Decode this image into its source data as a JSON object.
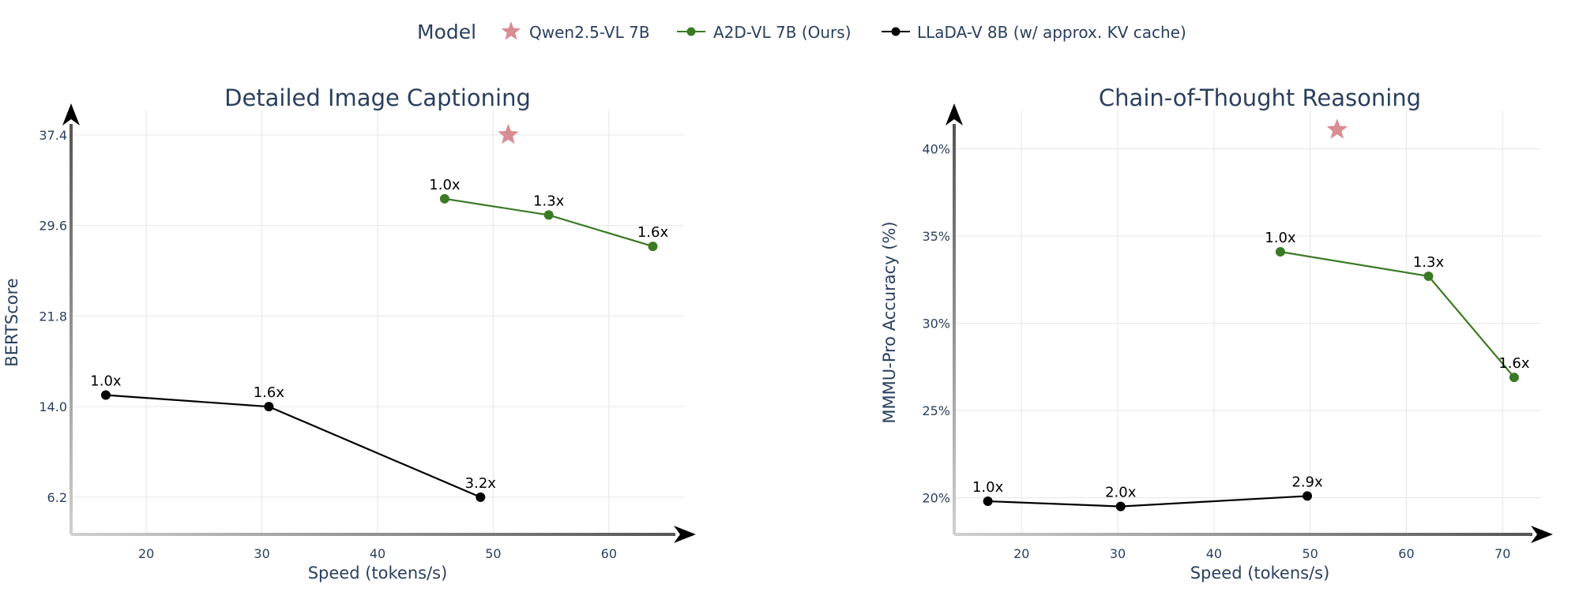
{
  "legend": {
    "title": "Model",
    "items": [
      {
        "label": "Qwen2.5-VL 7B",
        "marker": "star",
        "color": "#d98c92"
      },
      {
        "label": "A2D-VL 7B (Ours)",
        "marker": "circle-line",
        "color": "#3a7a24"
      },
      {
        "label": "LLaDA-V 8B (w/ approx. KV cache)",
        "marker": "circle-line",
        "color": "#000000"
      }
    ]
  },
  "colors": {
    "text": "#2a3f5f",
    "grid": "#e6e6e6",
    "star": "#d98c92",
    "ours": "#3a7a24",
    "llada": "#000000"
  },
  "chart_data": [
    {
      "type": "line",
      "title": "Detailed Image Captioning",
      "xlabel": "Speed (tokens/s)",
      "ylabel": "BERTScore",
      "xlim": [
        13.5,
        66.5
      ],
      "ylim": [
        3.0,
        39.5
      ],
      "xticks": [
        20,
        30,
        40,
        50,
        60
      ],
      "yticks": [
        6.2,
        14.0,
        21.8,
        29.6,
        37.4
      ],
      "ytick_labels": [
        "6.2",
        "14.0",
        "21.8",
        "29.6",
        "37.4"
      ],
      "grid": true,
      "series": [
        {
          "name": "Qwen2.5-VL 7B",
          "marker": "star",
          "x": [
            51.3
          ],
          "y": [
            37.4
          ],
          "labels": [
            ""
          ]
        },
        {
          "name": "A2D-VL 7B (Ours)",
          "marker": "circle",
          "x": [
            45.8,
            54.8,
            63.8
          ],
          "y": [
            31.9,
            30.5,
            27.8
          ],
          "labels": [
            "1.0x",
            "1.3x",
            "1.6x"
          ]
        },
        {
          "name": "LLaDA-V 8B (w/ approx. KV cache)",
          "marker": "circle",
          "x": [
            16.5,
            30.6,
            48.9
          ],
          "y": [
            15.0,
            14.0,
            6.2
          ],
          "labels": [
            "1.0x",
            "1.6x",
            "3.2x"
          ]
        }
      ]
    },
    {
      "type": "line",
      "title": "Chain-of-Thought Reasoning",
      "xlabel": "Speed (tokens/s)",
      "ylabel": "MMMU-Pro Accuracy (%)",
      "xlim": [
        13.0,
        74.0
      ],
      "ylim": [
        17.9,
        42.2
      ],
      "xticks": [
        20,
        30,
        40,
        50,
        60,
        70
      ],
      "yticks": [
        20,
        25,
        30,
        35,
        40
      ],
      "ytick_labels": [
        "20%",
        "25%",
        "30%",
        "35%",
        "40%"
      ],
      "grid": true,
      "series": [
        {
          "name": "Qwen2.5-VL 7B",
          "marker": "star",
          "x": [
            52.8
          ],
          "y": [
            41.1
          ],
          "labels": [
            ""
          ]
        },
        {
          "name": "A2D-VL 7B (Ours)",
          "marker": "circle",
          "x": [
            46.9,
            62.3,
            71.2
          ],
          "y": [
            34.1,
            32.7,
            26.9
          ],
          "labels": [
            "1.0x",
            "1.3x",
            "1.6x"
          ]
        },
        {
          "name": "LLaDA-V 8B (w/ approx. KV cache)",
          "marker": "circle",
          "x": [
            16.5,
            30.3,
            49.7
          ],
          "y": [
            19.8,
            19.5,
            20.1
          ],
          "labels": [
            "1.0x",
            "2.0x",
            "2.9x"
          ]
        }
      ]
    }
  ]
}
